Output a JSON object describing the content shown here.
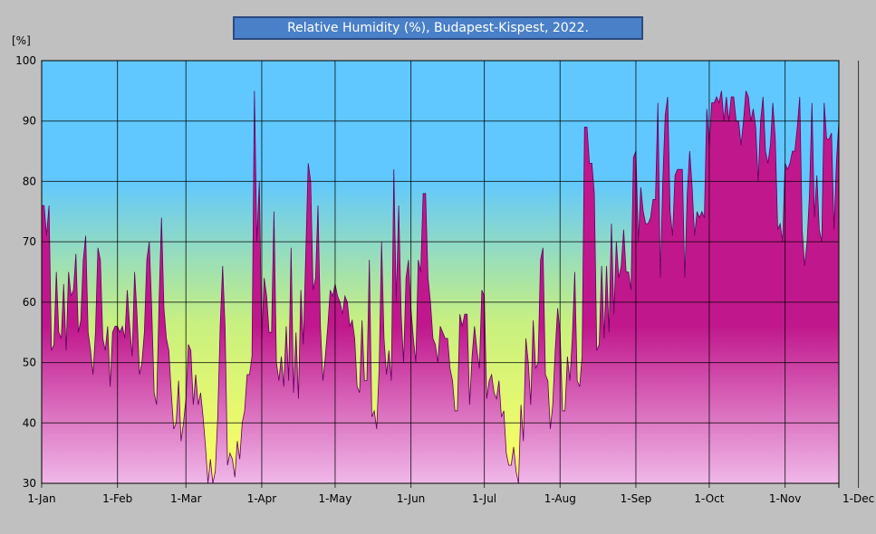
{
  "chart_data": {
    "type": "area",
    "title": "Relative Humidity (%), Budapest-Kispest, 2022.",
    "ylabel": "[%]",
    "xlabel": "",
    "ylim": [
      30,
      100
    ],
    "yticks": [
      30,
      40,
      50,
      60,
      70,
      80,
      90,
      100
    ],
    "xticks": [
      "1-Jan",
      "1-Feb",
      "1-Mar",
      "1-Apr",
      "1-May",
      "1-Jun",
      "1-Jul",
      "1-Aug",
      "1-Sep",
      "1-Oct",
      "1-Nov",
      "1-Dec"
    ],
    "xtick_days": [
      1,
      32,
      60,
      91,
      121,
      152,
      182,
      213,
      244,
      274,
      305,
      335
    ],
    "grid": true,
    "colors": {
      "fill_top": "#c0188c",
      "fill_bottom": "#f0b8e8",
      "line": "#600060",
      "bg_top": "#60c8ff",
      "bg_mid": "#c8f080",
      "bg_bottom": "#ffff60"
    },
    "series": [
      {
        "values": [
          76,
          76,
          71,
          76,
          52,
          53,
          65,
          55,
          54,
          63,
          52,
          65,
          61,
          62,
          68,
          55,
          57,
          67,
          71,
          55,
          52,
          48,
          55,
          69,
          67,
          54,
          52,
          56,
          46,
          55,
          56,
          56,
          55,
          56,
          54,
          62,
          56,
          51,
          65,
          58,
          48,
          50,
          55,
          67,
          70,
          59,
          45,
          43,
          60,
          74,
          59,
          54,
          52,
          45,
          39,
          40,
          47,
          37,
          40,
          44,
          53,
          52,
          43,
          48,
          43,
          45,
          41,
          36,
          26,
          34,
          28,
          32,
          41,
          56,
          66,
          56,
          33,
          35,
          34,
          31,
          37,
          34,
          40,
          42,
          48,
          48,
          51,
          95,
          70,
          80,
          54,
          64,
          61,
          55,
          55,
          75,
          50,
          47,
          51,
          46,
          56,
          47,
          69,
          45,
          55,
          44,
          62,
          53,
          68,
          83,
          80,
          62,
          64,
          76,
          56,
          47,
          51,
          56,
          62,
          61,
          63,
          61,
          60,
          58,
          61,
          60,
          56,
          57,
          54,
          46,
          45,
          57,
          47,
          47,
          67,
          41,
          42,
          39,
          49,
          70,
          54,
          48,
          52,
          47,
          82,
          60,
          76,
          58,
          50,
          64,
          67,
          59,
          54,
          50,
          67,
          65,
          78,
          78,
          64,
          60,
          54,
          53,
          50,
          56,
          55,
          54,
          54,
          49,
          47,
          42,
          42,
          58,
          56,
          58,
          58,
          43,
          51,
          56,
          52,
          49,
          62,
          61,
          44,
          47,
          48,
          45,
          44,
          47,
          41,
          42,
          35,
          33,
          33,
          36,
          32,
          26,
          43,
          37,
          54,
          50,
          43,
          57,
          49,
          50,
          67,
          69,
          48,
          47,
          39,
          43,
          52,
          59,
          55,
          42,
          42,
          51,
          47,
          54,
          65,
          47,
          46,
          51,
          89,
          89,
          83,
          83,
          78,
          52,
          53,
          66,
          54,
          66,
          55,
          73,
          58,
          70,
          64,
          66,
          72,
          65,
          65,
          62,
          84,
          85,
          70,
          79,
          75,
          73,
          73,
          74,
          77,
          77,
          93,
          64,
          80,
          91,
          94,
          75,
          71,
          81,
          82,
          82,
          82,
          64,
          78,
          85,
          79,
          71,
          75,
          74,
          75,
          74,
          92,
          86,
          93,
          93,
          94,
          93,
          95,
          90,
          94,
          90,
          94,
          94,
          90,
          90,
          86,
          90,
          95,
          94,
          90,
          92,
          89,
          80,
          90,
          94,
          85,
          83,
          86,
          93,
          87,
          72,
          73,
          70,
          83,
          82,
          83,
          85,
          85,
          89,
          94,
          72,
          66,
          70,
          78,
          93,
          74,
          81,
          72,
          70,
          93,
          87,
          87,
          88,
          72,
          83,
          90
        ]
      }
    ]
  }
}
